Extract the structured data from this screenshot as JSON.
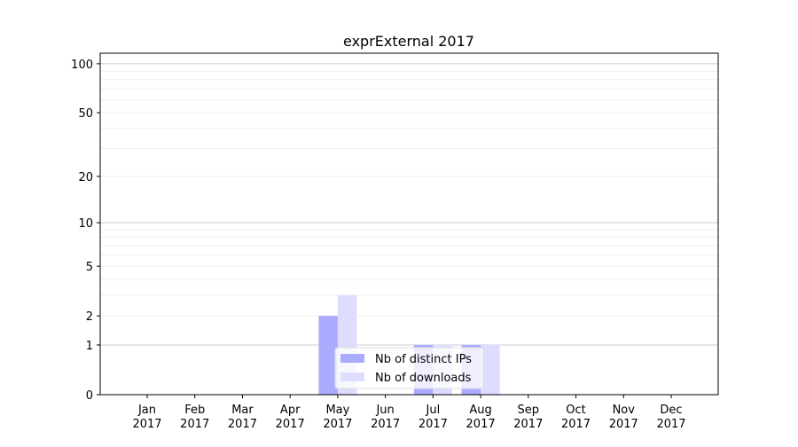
{
  "chart_data": {
    "type": "bar",
    "title": "exprExternal 2017",
    "xlabel": "",
    "ylabel": "",
    "y_scale": "log(1+y)",
    "ylim": [
      0,
      116
    ],
    "y_ticks": [
      0,
      1,
      2,
      5,
      10,
      20,
      50,
      100
    ],
    "grid": true,
    "legend_position": "lower center",
    "categories": [
      "Jan\n2017",
      "Feb\n2017",
      "Mar\n2017",
      "Apr\n2017",
      "May\n2017",
      "Jun\n2017",
      "Jul\n2017",
      "Aug\n2017",
      "Sep\n2017",
      "Oct\n2017",
      "Nov\n2017",
      "Dec\n2017"
    ],
    "series": [
      {
        "name": "Nb of distinct IPs",
        "color": "#aaaaff",
        "values": [
          0,
          0,
          0,
          0,
          2,
          0,
          1,
          1,
          0,
          0,
          0,
          0
        ]
      },
      {
        "name": "Nb of downloads",
        "color": "#ddddff",
        "values": [
          0,
          0,
          0,
          0,
          3,
          0,
          1,
          1,
          0,
          0,
          0,
          0
        ]
      }
    ]
  }
}
